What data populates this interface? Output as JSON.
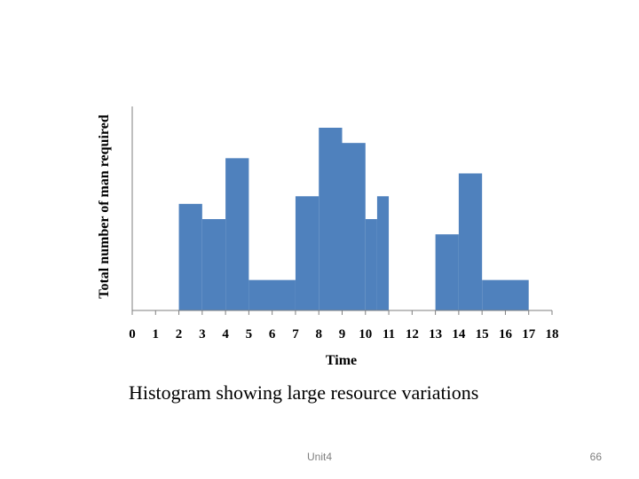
{
  "chart_data": {
    "type": "bar",
    "title": "",
    "xlabel": "Time",
    "ylabel": "Total number of man required",
    "x_ticks": [
      "0",
      "1",
      "2",
      "3",
      "4",
      "5",
      "6",
      "7",
      "8",
      "9",
      "10",
      "11",
      "12",
      "13",
      "14",
      "15",
      "16",
      "17",
      "18"
    ],
    "xlim": [
      0,
      18
    ],
    "ylim": [
      0,
      12
    ],
    "grid": false,
    "legend": "none",
    "bar_color": "#4f81bd",
    "bars": [
      {
        "x0": 2,
        "x1": 3,
        "value": 7
      },
      {
        "x0": 3,
        "x1": 4,
        "value": 6
      },
      {
        "x0": 4,
        "x1": 5,
        "value": 10
      },
      {
        "x0": 5,
        "x1": 7,
        "value": 2
      },
      {
        "x0": 7,
        "x1": 8,
        "value": 7.5
      },
      {
        "x0": 8,
        "x1": 9,
        "value": 12
      },
      {
        "x0": 9,
        "x1": 10,
        "value": 11
      },
      {
        "x0": 10,
        "x1": 10.5,
        "value": 6
      },
      {
        "x0": 10.5,
        "x1": 11,
        "value": 7.5
      },
      {
        "x0": 13,
        "x1": 14,
        "value": 5
      },
      {
        "x0": 14,
        "x1": 15,
        "value": 9
      },
      {
        "x0": 15,
        "x1": 17,
        "value": 2
      }
    ]
  },
  "caption": "Histogram showing large resource variations",
  "footer": {
    "center": "Unit4",
    "page_number": "66"
  }
}
